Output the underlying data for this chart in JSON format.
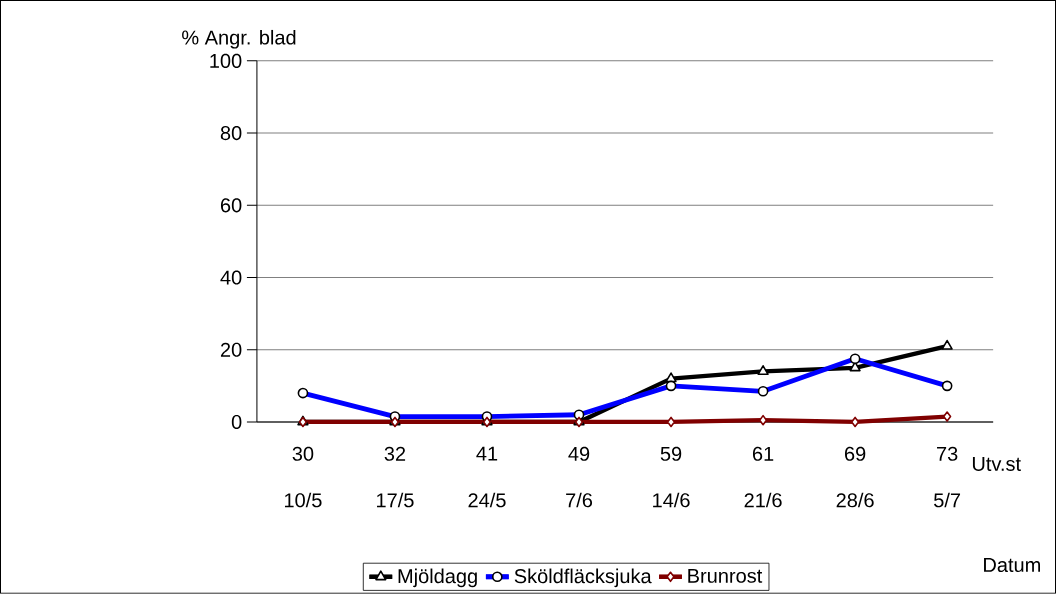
{
  "chart_data": {
    "type": "line",
    "ylabel": "% Angr. blad",
    "xlabel": "Utv.st",
    "categories": [
      "30",
      "32",
      "41",
      "49",
      "59",
      "61",
      "69",
      "73"
    ],
    "series": [
      {
        "name": "Mjöldagg",
        "color": "#000000",
        "marker": "triangle",
        "values": [
          0,
          0,
          0,
          0,
          12,
          14,
          15,
          21
        ]
      },
      {
        "name": "Sköldfläcksjuka",
        "color": "#0000ff",
        "marker": "circle",
        "values": [
          8,
          1.5,
          1.5,
          2,
          10,
          8.5,
          17.5,
          10
        ]
      },
      {
        "name": "Brunrost",
        "color": "#800000",
        "marker": "diamond",
        "values": [
          0,
          0,
          0,
          0,
          0,
          0.5,
          0,
          1.5
        ]
      }
    ],
    "ylim": [
      0,
      100
    ],
    "yticks": [
      0,
      20,
      40,
      60,
      80,
      100
    ],
    "grid": "y",
    "legend": "bottom",
    "line_style": "solid",
    "annotations": [
      "10/5",
      "17/5",
      "24/5",
      "7/6",
      "14/6",
      "21/6",
      "28/6",
      "5/7",
      "Datum"
    ]
  }
}
